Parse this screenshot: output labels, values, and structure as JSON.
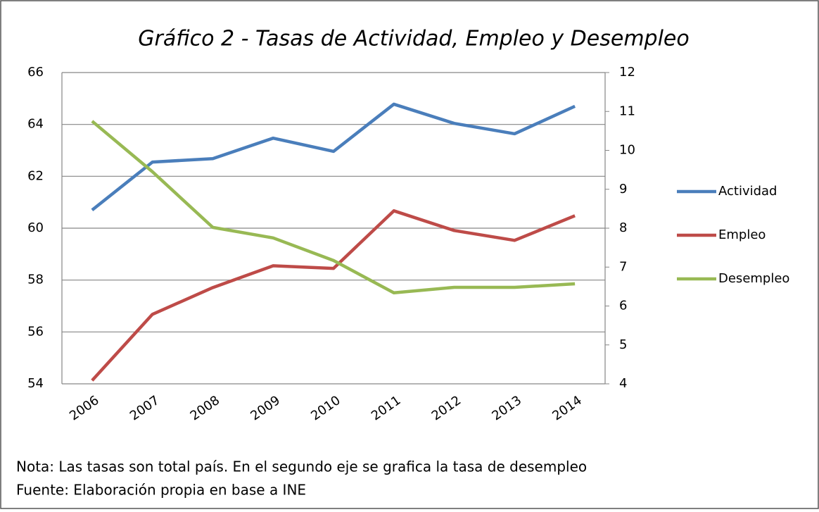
{
  "chart_data": {
    "type": "line",
    "title": "Gráfico 2 - Tasas de Actividad, Empleo y Desempleo",
    "categories": [
      "2006",
      "2007",
      "2008",
      "2009",
      "2010",
      "2011",
      "2012",
      "2013",
      "2014"
    ],
    "series": [
      {
        "name": "Actividad",
        "color": "#4a7ebb",
        "values": [
          60.7,
          62.55,
          62.68,
          63.47,
          62.96,
          64.78,
          64.04,
          63.64,
          64.7
        ]
      },
      {
        "name": "Empleo",
        "color": "#be4b48",
        "values": [
          54.13,
          56.68,
          57.71,
          58.55,
          58.45,
          60.67,
          59.91,
          59.53,
          60.48
        ]
      },
      {
        "name": "Desempleo",
        "color": "#98b954",
        "axis": "y2",
        "values": [
          10.75,
          9.45,
          8.02,
          7.75,
          7.17,
          6.34,
          6.48,
          6.48,
          6.57
        ]
      }
    ],
    "ylim": [
      54,
      66
    ],
    "yticks": [
      54,
      56,
      58,
      60,
      62,
      64,
      66
    ],
    "y2lim": [
      4,
      12
    ],
    "y2ticks": [
      4,
      5,
      6,
      7,
      8,
      9,
      10,
      11,
      12
    ],
    "grid": true,
    "legend": "right"
  },
  "notes": [
    "Nota: Las tasas son total país. En el segundo eje se grafica la tasa de desempleo",
    "Fuente: Elaboración propia en base a INE"
  ]
}
